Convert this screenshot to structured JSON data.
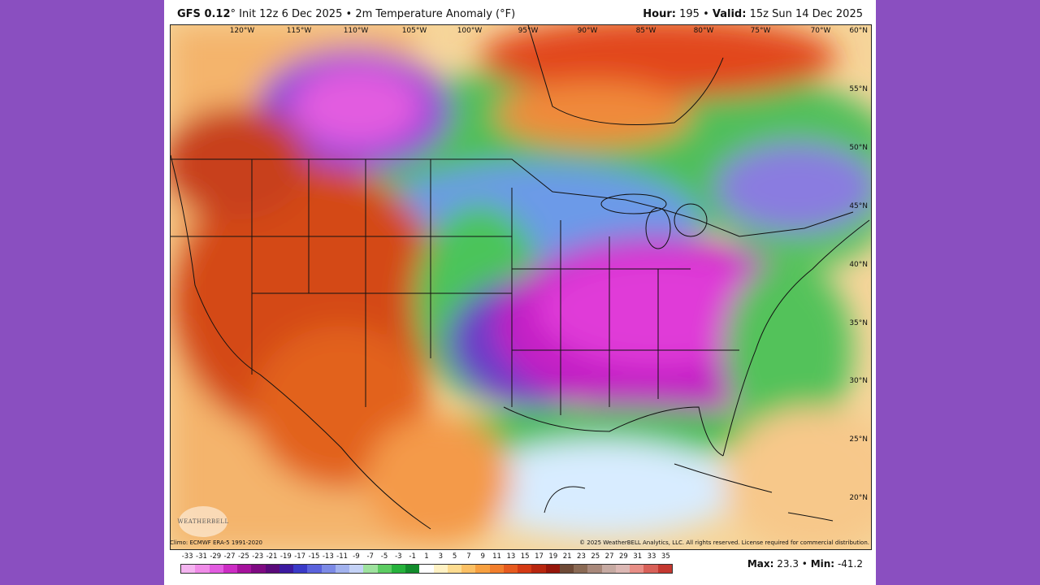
{
  "header": {
    "model": "GFS 0.12",
    "degree": "°",
    "init": "Init 12z 6 Dec 2025",
    "sep1": "•",
    "field": "2m Temperature Anomaly (°F)",
    "hour_label": "Hour:",
    "hour": "195",
    "sep2": "•",
    "valid_label": "Valid:",
    "valid": "15z Sun 14 Dec 2025"
  },
  "map": {
    "lon_labels": [
      "120°W",
      "115°W",
      "110°W",
      "105°W",
      "100°W",
      "95°W",
      "90°W",
      "85°W",
      "80°W",
      "75°W",
      "70°W"
    ],
    "lat_labels": [
      "60°N",
      "55°N",
      "50°N",
      "45°N",
      "40°N",
      "35°N",
      "30°N",
      "25°N",
      "20°N"
    ],
    "watermark": "WEATHERBELL",
    "anomaly_regions": [
      {
        "region": "Western US / Great Basin",
        "category": "warm",
        "color": "#c63a12"
      },
      {
        "region": "Southeast US / Tennessee Valley",
        "category": "cold",
        "color": "#c21ec4"
      },
      {
        "region": "Southern Plains / Texas",
        "category": "cold",
        "color": "#7a3cc8"
      },
      {
        "region": "Northern Rockies / Canadian Prairies",
        "category": "cold",
        "color": "#d63cd0"
      },
      {
        "region": "Hudson Bay / Quebec",
        "category": "warm",
        "color": "#e04a1c"
      },
      {
        "region": "Gulf of Mexico",
        "category": "near-normal/cool",
        "color": "#d6ecff"
      }
    ]
  },
  "footer": {
    "climo": "Climo: ECMWF ERA-5 1991-2020",
    "copyright": "© 2025 WeatherBELL Analytics, LLC. All rights reserved. License required for commercial distribution.",
    "max_label": "Max:",
    "max": "23.3",
    "sep": "•",
    "min_label": "Min:",
    "min": "-41.2"
  },
  "legend": {
    "labels": [
      "-33",
      "-31",
      "-29",
      "-27",
      "-25",
      "-23",
      "-21",
      "-19",
      "-17",
      "-15",
      "-13",
      "-11",
      "-9",
      "-7",
      "-5",
      "-3",
      "-1",
      "1",
      "3",
      "5",
      "7",
      "9",
      "11",
      "13",
      "15",
      "17",
      "19",
      "21",
      "23",
      "25",
      "27",
      "29",
      "31",
      "33",
      "35"
    ],
    "colors": [
      "#f4b4f0",
      "#f08ce8",
      "#e25ce0",
      "#cc2cc4",
      "#a5129c",
      "#7e0a82",
      "#5a0a7a",
      "#3c1aa0",
      "#3a3ac8",
      "#5a62dc",
      "#7c8ae6",
      "#a2b2ee",
      "#c4d2f6",
      "#9ee29e",
      "#5ccc62",
      "#26b23c",
      "#128c2c",
      "#ffffff",
      "#fff2c4",
      "#fddc90",
      "#fbc064",
      "#f7a040",
      "#f27e2c",
      "#e65a1e",
      "#d43a14",
      "#b8260e",
      "#96160a",
      "#6e4a36",
      "#8a6a54",
      "#a8887a",
      "#c6aaa2",
      "#dcb8b4",
      "#e88e86",
      "#d86058",
      "#c43830"
    ]
  }
}
